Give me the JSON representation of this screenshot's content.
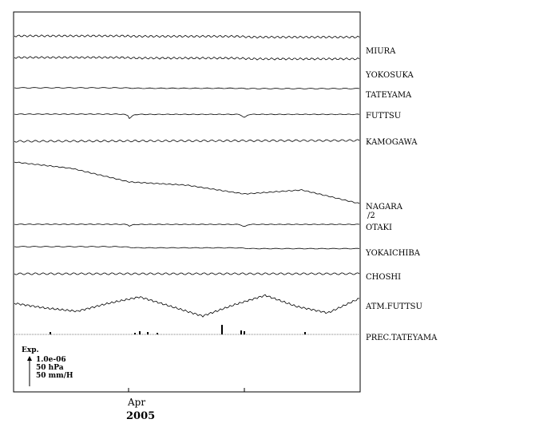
{
  "chart_data": {
    "type": "line",
    "x_ticks": [
      "Apr",
      ""
    ],
    "year": "2005",
    "legend": {
      "title": "Exp.",
      "scale_lines": [
        "1.0e-06",
        "50 hPa",
        "50 mm/H"
      ]
    },
    "divisor_note": "/2",
    "series": [
      {
        "name": "MIURA",
        "profile": "steps",
        "values": [
          0,
          0.5,
          1.5
        ]
      },
      {
        "name": "YOKOSUKA",
        "profile": "steps",
        "values": [
          0,
          0.8,
          1.8
        ]
      },
      {
        "name": "TATEYAMA",
        "profile": "steps",
        "values": [
          0,
          0.6,
          1.0
        ]
      },
      {
        "name": "FUTTSU",
        "profile": "dips",
        "values": [
          0,
          5,
          1,
          4
        ]
      },
      {
        "name": "KAMOGAWA",
        "profile": "flat",
        "values": [
          0,
          -1.0
        ]
      },
      {
        "name": "NAGARA",
        "profile": "decline",
        "values": [
          0,
          8,
          25,
          29,
          40,
          35,
          52
        ]
      },
      {
        "name": "OTAKI",
        "profile": "dips",
        "values": [
          0,
          2,
          0.5,
          3
        ]
      },
      {
        "name": "YOKAICHIBA",
        "profile": "steps",
        "values": [
          0,
          1.5,
          2.5
        ]
      },
      {
        "name": "CHOSHI",
        "profile": "flat",
        "values": [
          0,
          0
        ]
      },
      {
        "name": "ATM.FUTTSU",
        "profile": "pressure",
        "values": [
          0,
          6,
          10,
          0,
          -8,
          4,
          16,
          2,
          -10,
          4,
          12,
          -6
        ]
      },
      {
        "name": "PREC.TATEYAMA",
        "profile": "bars",
        "values": [
          3,
          2,
          4,
          3,
          2,
          12,
          5,
          4,
          3
        ]
      }
    ]
  }
}
